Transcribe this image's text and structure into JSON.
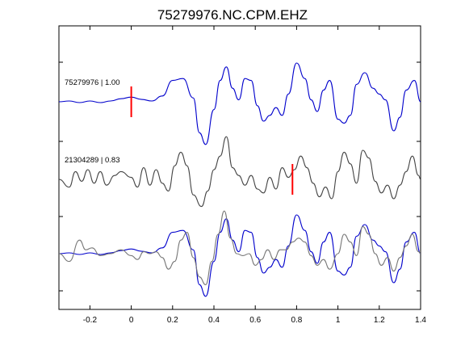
{
  "chart_data": {
    "type": "line",
    "title": "75279976.NC.CPM.EHZ",
    "xlabel": "",
    "ylabel": "",
    "xlim": [
      -0.35,
      1.4
    ],
    "x_ticks": [
      -0.2,
      0,
      0.2,
      0.4,
      0.6,
      0.8,
      1,
      1.2,
      1.4
    ],
    "x_tick_labels": [
      "-0.2",
      "0",
      "0.2",
      "0.4",
      "0.6",
      "0.8",
      "1",
      "1.2",
      "1.4"
    ],
    "grid": false,
    "panels": [
      {
        "label": "75279976 | 1.00",
        "pick_time": 0.0,
        "series": [
          {
            "color": "#0000cc",
            "points": [
              [
                -0.35,
                0
              ],
              [
                -0.3,
                0.02
              ],
              [
                -0.25,
                -0.02
              ],
              [
                -0.2,
                0.02
              ],
              [
                -0.15,
                -0.02
              ],
              [
                -0.1,
                0.02
              ],
              [
                -0.05,
                0.08
              ],
              [
                0,
                0.12
              ],
              [
                0.05,
                0.06
              ],
              [
                0.1,
                0.02
              ],
              [
                0.15,
                0.15
              ],
              [
                0.2,
                0.55
              ],
              [
                0.25,
                0.6
              ],
              [
                0.3,
                0.1
              ],
              [
                0.33,
                -0.8
              ],
              [
                0.36,
                -1.1
              ],
              [
                0.4,
                -0.2
              ],
              [
                0.43,
                0.55
              ],
              [
                0.46,
                0.9
              ],
              [
                0.49,
                0.35
              ],
              [
                0.52,
                0.05
              ],
              [
                0.55,
                0.6
              ],
              [
                0.58,
                0.55
              ],
              [
                0.61,
                -0.1
              ],
              [
                0.64,
                -0.5
              ],
              [
                0.67,
                -0.35
              ],
              [
                0.7,
                -0.15
              ],
              [
                0.73,
                -0.35
              ],
              [
                0.76,
                0.2
              ],
              [
                0.8,
                1.0
              ],
              [
                0.84,
                0.6
              ],
              [
                0.87,
                0.05
              ],
              [
                0.9,
                -0.25
              ],
              [
                0.93,
                0.3
              ],
              [
                0.96,
                0.55
              ],
              [
                1.0,
                -0.45
              ],
              [
                1.03,
                -0.55
              ],
              [
                1.06,
                -0.35
              ],
              [
                1.09,
                0.45
              ],
              [
                1.13,
                0.75
              ],
              [
                1.17,
                0.35
              ],
              [
                1.2,
                0.2
              ],
              [
                1.23,
                0.05
              ],
              [
                1.27,
                -0.75
              ],
              [
                1.3,
                -0.4
              ],
              [
                1.33,
                0.3
              ],
              [
                1.37,
                0.55
              ],
              [
                1.4,
                0.0
              ]
            ]
          }
        ]
      },
      {
        "label": "21304289 | 0.83",
        "pick_time": 0.78,
        "series": [
          {
            "color": "#444444",
            "points": [
              [
                -0.35,
                0
              ],
              [
                -0.3,
                -0.2
              ],
              [
                -0.27,
                0.2
              ],
              [
                -0.24,
                -0.05
              ],
              [
                -0.21,
                0.25
              ],
              [
                -0.18,
                -0.1
              ],
              [
                -0.15,
                0.2
              ],
              [
                -0.12,
                -0.15
              ],
              [
                -0.08,
                0.1
              ],
              [
                -0.05,
                0.2
              ],
              [
                0,
                0.05
              ],
              [
                0.03,
                -0.2
              ],
              [
                0.06,
                0.3
              ],
              [
                0.09,
                -0.15
              ],
              [
                0.12,
                0.25
              ],
              [
                0.15,
                -0.1
              ],
              [
                0.18,
                -0.3
              ],
              [
                0.21,
                0.35
              ],
              [
                0.24,
                0.7
              ],
              [
                0.27,
                0.35
              ],
              [
                0.3,
                -0.4
              ],
              [
                0.34,
                -0.7
              ],
              [
                0.37,
                -0.3
              ],
              [
                0.4,
                0.25
              ],
              [
                0.43,
                0.6
              ],
              [
                0.46,
                1.1
              ],
              [
                0.49,
                0.3
              ],
              [
                0.52,
                0.1
              ],
              [
                0.55,
                -0.15
              ],
              [
                0.58,
                0.1
              ],
              [
                0.61,
                -0.25
              ],
              [
                0.64,
                -0.35
              ],
              [
                0.67,
                0.05
              ],
              [
                0.7,
                -0.25
              ],
              [
                0.73,
                0.3
              ],
              [
                0.76,
                0.05
              ],
              [
                0.79,
                0.25
              ],
              [
                0.82,
                0.6
              ],
              [
                0.85,
                0.3
              ],
              [
                0.88,
                -0.1
              ],
              [
                0.91,
                -0.45
              ],
              [
                0.94,
                -0.2
              ],
              [
                0.97,
                -0.5
              ],
              [
                1.0,
                0.2
              ],
              [
                1.03,
                0.7
              ],
              [
                1.06,
                0.4
              ],
              [
                1.09,
                -0.1
              ],
              [
                1.12,
                0.75
              ],
              [
                1.15,
                0.55
              ],
              [
                1.18,
                -0.05
              ],
              [
                1.21,
                -0.35
              ],
              [
                1.24,
                -0.15
              ],
              [
                1.27,
                -0.5
              ],
              [
                1.3,
                -0.15
              ],
              [
                1.33,
                0.2
              ],
              [
                1.36,
                0.6
              ],
              [
                1.39,
                0.1
              ],
              [
                1.4,
                0.0
              ]
            ]
          }
        ]
      },
      {
        "label": "",
        "pick_time": null,
        "series": [
          {
            "color": "#0000cc",
            "points": [
              [
                -0.35,
                0
              ],
              [
                -0.3,
                0.02
              ],
              [
                -0.25,
                -0.02
              ],
              [
                -0.2,
                0.02
              ],
              [
                -0.15,
                -0.02
              ],
              [
                -0.1,
                0.02
              ],
              [
                -0.05,
                0.08
              ],
              [
                0,
                0.12
              ],
              [
                0.05,
                0.06
              ],
              [
                0.1,
                0.02
              ],
              [
                0.15,
                0.15
              ],
              [
                0.2,
                0.55
              ],
              [
                0.25,
                0.6
              ],
              [
                0.3,
                0.1
              ],
              [
                0.33,
                -0.8
              ],
              [
                0.36,
                -1.1
              ],
              [
                0.4,
                -0.2
              ],
              [
                0.43,
                0.55
              ],
              [
                0.46,
                0.9
              ],
              [
                0.49,
                0.35
              ],
              [
                0.52,
                0.05
              ],
              [
                0.55,
                0.6
              ],
              [
                0.58,
                0.55
              ],
              [
                0.61,
                -0.1
              ],
              [
                0.64,
                -0.5
              ],
              [
                0.67,
                -0.35
              ],
              [
                0.7,
                -0.15
              ],
              [
                0.73,
                -0.35
              ],
              [
                0.76,
                0.2
              ],
              [
                0.8,
                1.0
              ],
              [
                0.84,
                0.6
              ],
              [
                0.87,
                0.05
              ],
              [
                0.9,
                -0.25
              ],
              [
                0.93,
                0.3
              ],
              [
                0.96,
                0.55
              ],
              [
                1.0,
                -0.45
              ],
              [
                1.03,
                -0.55
              ],
              [
                1.06,
                -0.35
              ],
              [
                1.09,
                0.45
              ],
              [
                1.13,
                0.75
              ],
              [
                1.17,
                0.35
              ],
              [
                1.2,
                0.2
              ],
              [
                1.23,
                0.05
              ],
              [
                1.27,
                -0.75
              ],
              [
                1.3,
                -0.4
              ],
              [
                1.33,
                0.3
              ],
              [
                1.37,
                0.55
              ],
              [
                1.4,
                0.0
              ]
            ]
          },
          {
            "color": "#777777",
            "points": [
              [
                -0.35,
                0
              ],
              [
                -0.3,
                -0.2
              ],
              [
                -0.25,
                0.35
              ],
              [
                -0.22,
                0.1
              ],
              [
                -0.19,
                0.15
              ],
              [
                -0.15,
                -0.05
              ],
              [
                -0.1,
                0.0
              ],
              [
                -0.05,
                0.1
              ],
              [
                0,
                -0.05
              ],
              [
                0.03,
                -0.15
              ],
              [
                0.06,
                0.05
              ],
              [
                0.09,
                0.0
              ],
              [
                0.12,
                0.05
              ],
              [
                0.15,
                -0.1
              ],
              [
                0.18,
                -0.4
              ],
              [
                0.21,
                -0.2
              ],
              [
                0.24,
                0.35
              ],
              [
                0.27,
                0.55
              ],
              [
                0.3,
                -0.1
              ],
              [
                0.33,
                -0.6
              ],
              [
                0.36,
                -0.8
              ],
              [
                0.39,
                -0.2
              ],
              [
                0.42,
                0.5
              ],
              [
                0.45,
                1.1
              ],
              [
                0.48,
                0.4
              ],
              [
                0.51,
                0.0
              ],
              [
                0.54,
                -0.05
              ],
              [
                0.57,
                0.0
              ],
              [
                0.6,
                -0.3
              ],
              [
                0.63,
                -0.15
              ],
              [
                0.66,
                0.1
              ],
              [
                0.69,
                -0.15
              ],
              [
                0.72,
                0.1
              ],
              [
                0.75,
                0.1
              ],
              [
                0.78,
                0.3
              ],
              [
                0.81,
                0.4
              ],
              [
                0.84,
                0.3
              ],
              [
                0.87,
                -0.05
              ],
              [
                0.9,
                -0.3
              ],
              [
                0.93,
                -0.15
              ],
              [
                0.96,
                -0.4
              ],
              [
                1.0,
                0.0
              ],
              [
                1.03,
                0.5
              ],
              [
                1.06,
                0.3
              ],
              [
                1.09,
                -0.05
              ],
              [
                1.12,
                0.7
              ],
              [
                1.15,
                0.5
              ],
              [
                1.18,
                0.0
              ],
              [
                1.21,
                -0.3
              ],
              [
                1.24,
                -0.1
              ],
              [
                1.27,
                -0.45
              ],
              [
                1.3,
                -0.1
              ],
              [
                1.33,
                0.2
              ],
              [
                1.36,
                0.5
              ],
              [
                1.39,
                0.05
              ],
              [
                1.4,
                0.0
              ]
            ]
          }
        ]
      }
    ]
  }
}
